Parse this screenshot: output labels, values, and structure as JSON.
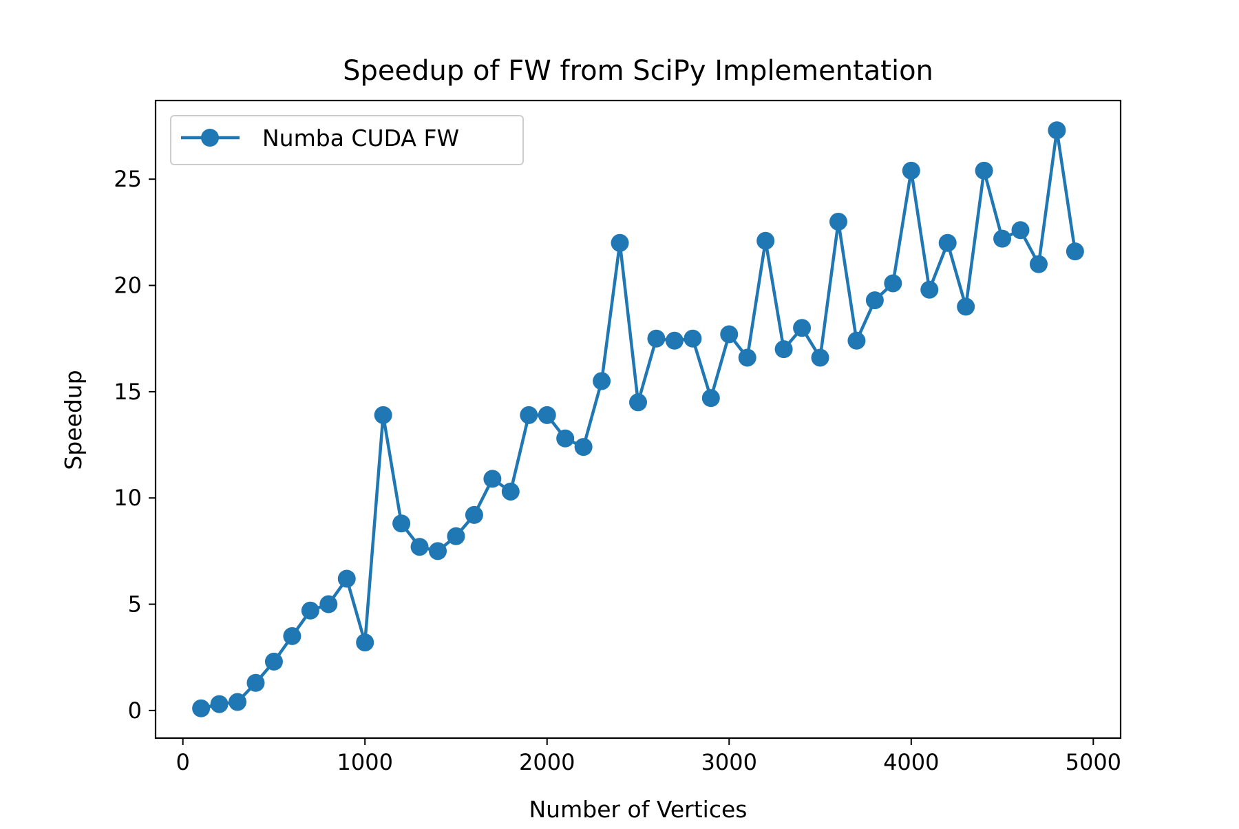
{
  "chart_data": {
    "type": "line",
    "title": "Speedup of FW from SciPy Implementation",
    "xlabel": "Number of Vertices",
    "ylabel": "Speedup",
    "xlim": [
      -150,
      5150
    ],
    "ylim": [
      -1.3,
      28.7
    ],
    "xticks": [
      0,
      1000,
      2000,
      3000,
      4000,
      5000
    ],
    "yticks": [
      0,
      5,
      10,
      15,
      20,
      25
    ],
    "grid": false,
    "legend_position": "top-left",
    "series": [
      {
        "name": "Numba CUDA FW",
        "color": "#1f77b4",
        "marker": "circle",
        "x": [
          100,
          200,
          300,
          400,
          500,
          600,
          700,
          800,
          900,
          1000,
          1100,
          1200,
          1300,
          1400,
          1500,
          1600,
          1700,
          1800,
          1900,
          2000,
          2100,
          2200,
          2300,
          2400,
          2500,
          2600,
          2700,
          2800,
          2900,
          3000,
          3100,
          3200,
          3300,
          3400,
          3500,
          3600,
          3700,
          3800,
          3900,
          4000,
          4100,
          4200,
          4300,
          4400,
          4500,
          4600,
          4700,
          4800,
          4900
        ],
        "y": [
          0.1,
          0.3,
          0.4,
          1.3,
          2.3,
          3.5,
          4.7,
          5.0,
          6.2,
          3.2,
          13.9,
          8.8,
          7.7,
          7.5,
          8.2,
          9.2,
          10.9,
          10.3,
          13.9,
          13.9,
          12.8,
          12.4,
          15.5,
          22.0,
          14.5,
          17.5,
          17.4,
          17.5,
          14.7,
          17.7,
          16.6,
          22.1,
          17.0,
          18.0,
          16.6,
          23.0,
          17.4,
          19.3,
          20.1,
          25.4,
          19.8,
          22.0,
          19.0,
          25.4,
          22.2,
          22.6,
          21.0,
          27.3,
          21.6
        ]
      }
    ]
  }
}
